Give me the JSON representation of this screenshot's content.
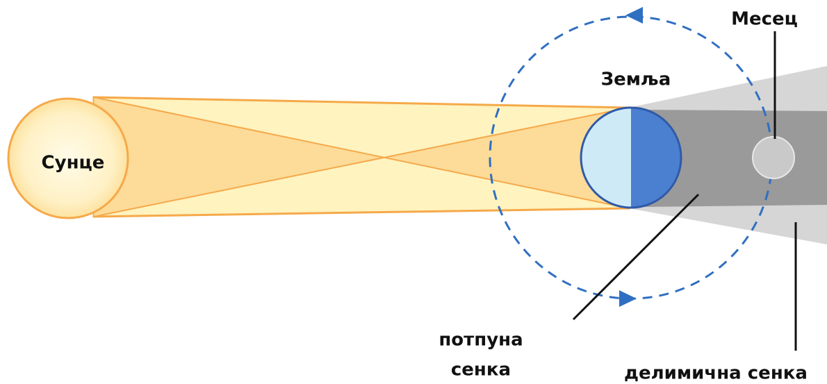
{
  "labels": {
    "sun": "Сунце",
    "earth": "Земља",
    "moon": "Месец",
    "umbra": [
      "потпуна",
      "сенка"
    ],
    "penumbra": "делимична сенка"
  }
}
